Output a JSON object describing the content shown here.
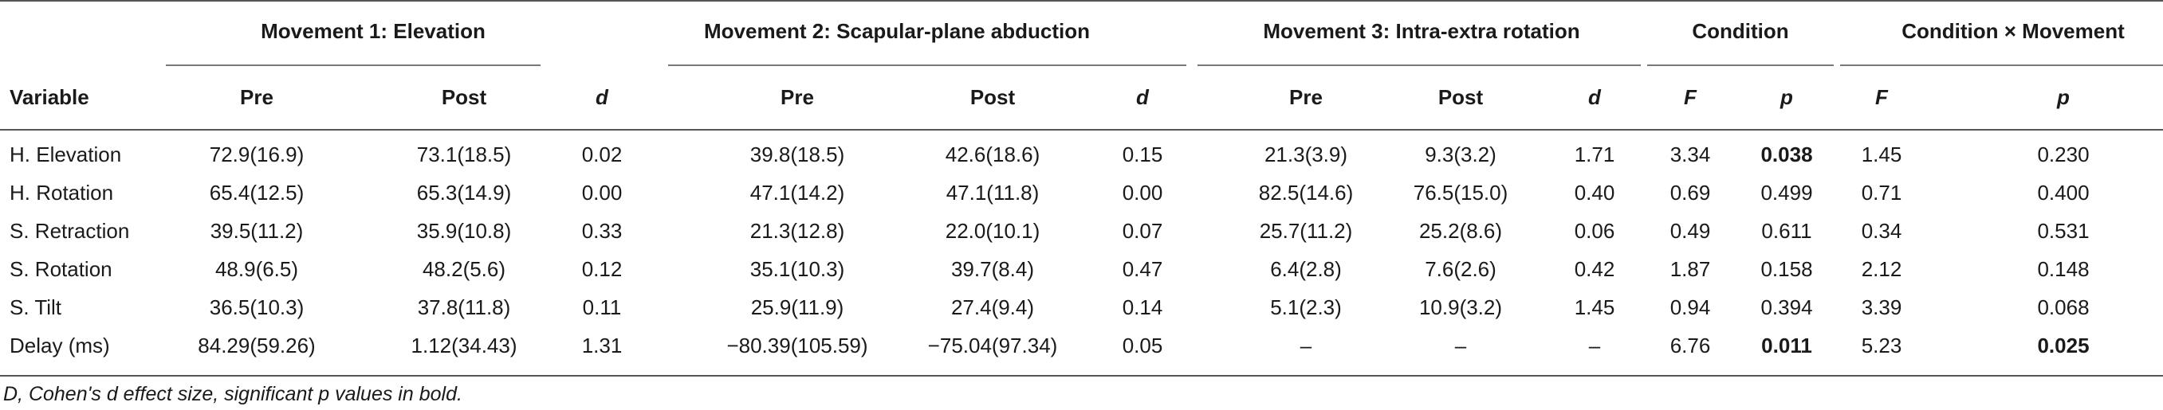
{
  "table": {
    "group_headers": [
      "Movement 1: Elevation",
      "Movement 2: Scapular-plane abduction",
      "Movement 3: Intra-extra rotation",
      "Condition",
      "Condition × Movement"
    ],
    "sub_headers": [
      "Variable",
      "Pre",
      "Post",
      "d",
      "Pre",
      "Post",
      "d",
      "Pre",
      "Post",
      "d",
      "F",
      "p",
      "F",
      "p"
    ],
    "rows": [
      [
        "H. Elevation",
        "72.9(16.9)",
        "73.1(18.5)",
        "0.02",
        "39.8(18.5)",
        "42.6(18.6)",
        "0.15",
        "21.3(3.9)",
        "9.3(3.2)",
        "1.71",
        "3.34",
        "0.038",
        "1.45",
        "0.230"
      ],
      [
        "H. Rotation",
        "65.4(12.5)",
        "65.3(14.9)",
        "0.00",
        "47.1(14.2)",
        "47.1(11.8)",
        "0.00",
        "82.5(14.6)",
        "76.5(15.0)",
        "0.40",
        "0.69",
        "0.499",
        "0.71",
        "0.400"
      ],
      [
        "S. Retraction",
        "39.5(11.2)",
        "35.9(10.8)",
        "0.33",
        "21.3(12.8)",
        "22.0(10.1)",
        "0.07",
        "25.7(11.2)",
        "25.2(8.6)",
        "0.06",
        "0.49",
        "0.611",
        "0.34",
        "0.531"
      ],
      [
        "S. Rotation",
        "48.9(6.5)",
        "48.2(5.6)",
        "0.12",
        "35.1(10.3)",
        "39.7(8.4)",
        "0.47",
        "6.4(2.8)",
        "7.6(2.6)",
        "0.42",
        "1.87",
        "0.158",
        "2.12",
        "0.148"
      ],
      [
        "S. Tilt",
        "36.5(10.3)",
        "37.8(11.8)",
        "0.11",
        "25.9(11.9)",
        "27.4(9.4)",
        "0.14",
        "5.1(2.3)",
        "10.9(3.2)",
        "1.45",
        "0.94",
        "0.394",
        "3.39",
        "0.068"
      ],
      [
        "Delay (ms)",
        "84.29(59.26)",
        "1.12(34.43)",
        "1.31",
        "−80.39(105.59)",
        "−75.04(97.34)",
        "0.05",
        "–",
        "–",
        "–",
        "6.76",
        "0.011",
        "5.23",
        "0.025"
      ]
    ],
    "bold_cells": [
      [
        0,
        11
      ],
      [
        5,
        11
      ],
      [
        5,
        13
      ]
    ]
  },
  "footnote": "D, Cohen's d effect size, significant p values in bold."
}
